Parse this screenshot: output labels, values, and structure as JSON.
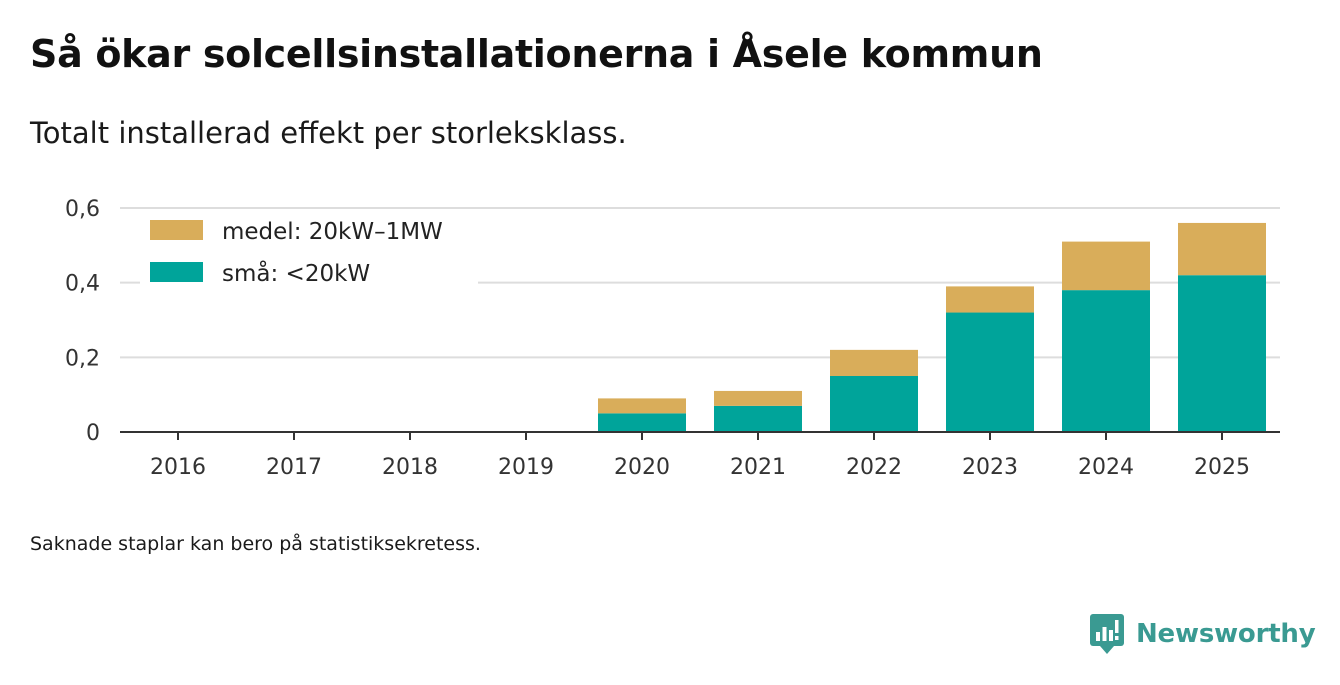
{
  "header": {
    "title": "Så ökar solcellsinstallationerna i Åsele kommun",
    "subtitle": "Totalt installerad effekt per storleksklass."
  },
  "footer": {
    "note": "Saknade staplar kan bero på statistiksekretess.",
    "brand": "Newsworthy"
  },
  "colors": {
    "small": "#00a49a",
    "medium": "#d9ad5a",
    "grid": "#dddddd",
    "axis": "#333333",
    "brand": "#3a9a92"
  },
  "chart_data": {
    "type": "bar",
    "stacked": true,
    "title": "Så ökar solcellsinstallationerna i Åsele kommun",
    "subtitle": "Totalt installerad effekt per storleksklass.",
    "xlabel": "",
    "ylabel": "",
    "ylim": [
      0,
      0.6
    ],
    "yticks": [
      0,
      0.2,
      0.4,
      0.6
    ],
    "ytick_labels": [
      "0",
      "0,2",
      "0,4",
      "0,6"
    ],
    "grid": true,
    "legend_position": "top-left",
    "categories": [
      "2016",
      "2017",
      "2018",
      "2019",
      "2020",
      "2021",
      "2022",
      "2023",
      "2024",
      "2025"
    ],
    "series": [
      {
        "name": "små: <20kW",
        "color": "#00a49a",
        "values": [
          0,
          0,
          0,
          0,
          0.05,
          0.07,
          0.15,
          0.32,
          0.38,
          0.42
        ]
      },
      {
        "name": "medel: 20kW–1MW",
        "color": "#d9ad5a",
        "values": [
          0,
          0,
          0,
          0,
          0.04,
          0.04,
          0.07,
          0.07,
          0.13,
          0.14
        ]
      }
    ],
    "legend": [
      "medel: 20kW–1MW",
      "små: <20kW"
    ]
  }
}
